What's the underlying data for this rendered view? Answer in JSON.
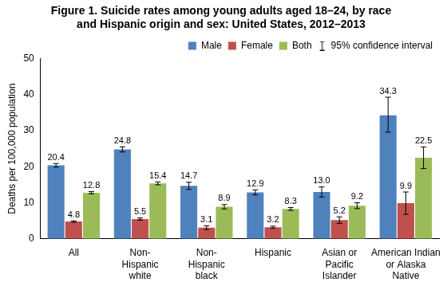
{
  "chart_data": {
    "type": "bar",
    "title": "Figure 1. Suicide rates among young adults aged 18–24, by race\nand Hispanic origin and sex: United States, 2012–2013",
    "y_label": "Deaths per 100,000 population",
    "categories": [
      "All",
      "Non-\nHispanic\nwhite",
      "Non-\nHispanic\nblack",
      "Hispanic",
      "Asian or\nPacific\nIslander",
      "American Indian\nor Alaska\nNative"
    ],
    "series": [
      {
        "name": "Male",
        "color": "#4f81bd",
        "values": [
          20.4,
          24.8,
          14.7,
          12.9,
          13.0,
          34.3
        ],
        "value_labels": [
          "20.4",
          "24.8",
          "14.7",
          "12.9",
          "13.0",
          "34.3"
        ],
        "ci_low": [
          19.9,
          24.1,
          13.7,
          12.2,
          11.6,
          29.6
        ],
        "ci_high": [
          20.9,
          25.5,
          15.7,
          13.6,
          14.4,
          39.3
        ]
      },
      {
        "name": "Female",
        "color": "#c0504d",
        "values": [
          4.8,
          5.5,
          3.1,
          3.2,
          5.2,
          9.9
        ],
        "value_labels": [
          "4.8",
          "5.5",
          "3.1",
          "3.2",
          "5.2",
          "9.9"
        ],
        "ci_low": [
          4.6,
          5.2,
          2.6,
          2.9,
          4.3,
          6.8
        ],
        "ci_high": [
          5.0,
          5.8,
          3.6,
          3.5,
          6.1,
          13.0
        ]
      },
      {
        "name": "Both",
        "color": "#9bbb59",
        "values": [
          12.8,
          15.4,
          8.9,
          8.3,
          9.2,
          22.5
        ],
        "value_labels": [
          "12.8",
          "15.4",
          "8.9",
          "8.3",
          "9.2",
          "22.5"
        ],
        "ci_low": [
          12.5,
          15.0,
          8.3,
          7.9,
          8.4,
          19.5
        ],
        "ci_high": [
          13.1,
          15.8,
          9.5,
          8.7,
          10.0,
          25.5
        ]
      }
    ],
    "ci_label": "95% confidence interval",
    "ylim": [
      0,
      50
    ],
    "yticks": [
      0,
      10,
      20,
      30,
      40,
      50
    ],
    "grid": false,
    "legend": "upper right",
    "data_labels": true
  }
}
